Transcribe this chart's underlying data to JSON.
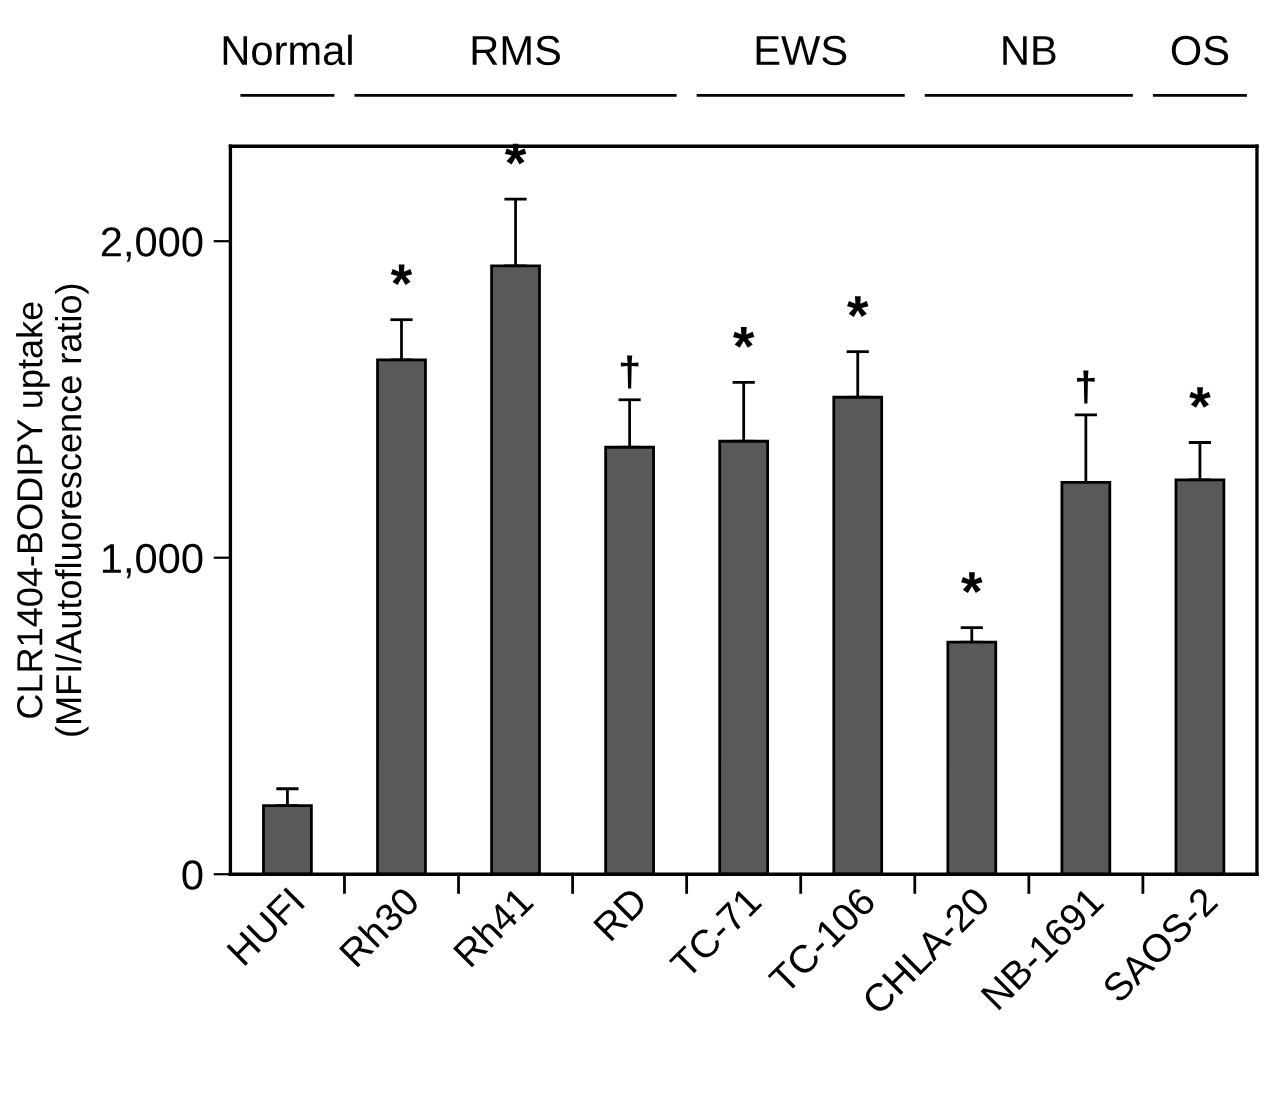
{
  "chart_data": {
    "type": "bar",
    "ylabel": "CLR1404-BODIPY uptake\n(MFI/Autofluorescence ratio)",
    "categories": [
      "HUFI",
      "Rh30",
      "Rh41",
      "RD",
      "TC-71",
      "TC-106",
      "CHLA-20",
      "NB-1691",
      "SAOS-2"
    ],
    "values": [
      217,
      1625,
      1922,
      1349,
      1368,
      1507,
      733,
      1238,
      1246
    ],
    "errors": [
      [
        217,
        270
      ],
      [
        1625,
        1752
      ],
      [
        1922,
        2133
      ],
      [
        1349,
        1499
      ],
      [
        1368,
        1554
      ],
      [
        1507,
        1651
      ],
      [
        733,
        779
      ],
      [
        1238,
        1451
      ],
      [
        1246,
        1364
      ]
    ],
    "color": "#595959",
    "ylim": [
      0,
      2300
    ],
    "yticks": [
      0,
      {
        "value": 1000,
        "label": "1,000"
      },
      {
        "value": 2000,
        "label": "2,000"
      }
    ],
    "grid": false,
    "legend": false,
    "annotations": [
      "Normal",
      "RMS",
      "EWS",
      "NB",
      "OS",
      {
        "text": "*",
        "x": "Rh30",
        "y": 1752
      },
      {
        "text": "*",
        "x": "Rh41",
        "y": 2133
      },
      {
        "text": "†",
        "x": "RD",
        "y": 1499
      },
      {
        "text": "*",
        "x": "TC-71",
        "y": 1554
      },
      {
        "text": "*",
        "x": "TC-106",
        "y": 1651
      },
      {
        "text": "*",
        "x": "CHLA-20",
        "y": 779
      },
      {
        "text": "†",
        "x": "NB-1691",
        "y": 1451
      },
      {
        "text": "*",
        "x": "SAOS-2",
        "y": 1364
      }
    ]
  }
}
